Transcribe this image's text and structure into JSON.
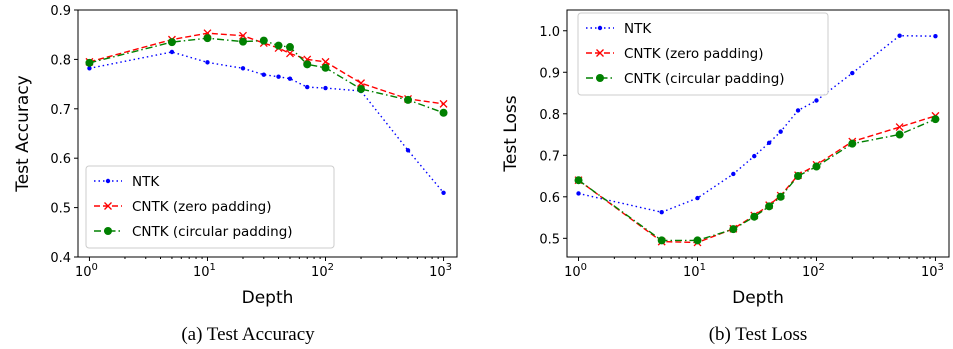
{
  "chart_data": [
    {
      "type": "line",
      "caption": "(a) Test Accuracy",
      "xlabel": "Depth",
      "ylabel": "Test Accuracy",
      "xscale": "log",
      "xlim": [
        0.8,
        1300
      ],
      "ylim": [
        0.4,
        0.9
      ],
      "yticks": [
        "0.4",
        "0.5",
        "0.6",
        "0.7",
        "0.8",
        "0.9"
      ],
      "xticks": [
        {
          "base": "10",
          "exp": "0"
        },
        {
          "base": "10",
          "exp": "1"
        },
        {
          "base": "10",
          "exp": "2"
        },
        {
          "base": "10",
          "exp": "3"
        }
      ],
      "legend_position": "lower-left",
      "series": [
        {
          "name": "NTK",
          "color": "#0000ff",
          "style": "dotted",
          "marker": "dot",
          "x": [
            1,
            5,
            10,
            20,
            30,
            40,
            50,
            70,
            100,
            200,
            500,
            1000
          ],
          "y": [
            0.782,
            0.815,
            0.794,
            0.782,
            0.769,
            0.765,
            0.761,
            0.744,
            0.742,
            0.736,
            0.616,
            0.53
          ]
        },
        {
          "name": "CNTK (zero padding)",
          "color": "#ff0000",
          "style": "dashed",
          "marker": "x",
          "x": [
            1,
            5,
            10,
            20,
            30,
            40,
            50,
            70,
            100,
            200,
            500,
            1000
          ],
          "y": [
            0.795,
            0.84,
            0.853,
            0.848,
            0.833,
            0.823,
            0.812,
            0.8,
            0.795,
            0.752,
            0.72,
            0.71
          ]
        },
        {
          "name": "CNTK (circular padding)",
          "color": "#008000",
          "style": "dashdot",
          "marker": "circle",
          "x": [
            1,
            5,
            10,
            20,
            30,
            40,
            50,
            70,
            100,
            200,
            500,
            1000
          ],
          "y": [
            0.793,
            0.835,
            0.843,
            0.836,
            0.838,
            0.828,
            0.825,
            0.79,
            0.783,
            0.74,
            0.718,
            0.692
          ]
        }
      ]
    },
    {
      "type": "line",
      "caption": "(b) Test Loss",
      "xlabel": "Depth",
      "ylabel": "Test Loss",
      "xscale": "log",
      "xlim": [
        0.8,
        1300
      ],
      "ylim": [
        0.455,
        1.05
      ],
      "yticks": [
        "0.5",
        "0.6",
        "0.7",
        "0.8",
        "0.9",
        "1.0"
      ],
      "xticks": [
        {
          "base": "10",
          "exp": "0"
        },
        {
          "base": "10",
          "exp": "1"
        },
        {
          "base": "10",
          "exp": "2"
        },
        {
          "base": "10",
          "exp": "3"
        }
      ],
      "legend_position": "upper-left",
      "series": [
        {
          "name": "NTK",
          "color": "#0000ff",
          "style": "dotted",
          "marker": "dot",
          "x": [
            1,
            5,
            10,
            20,
            30,
            40,
            50,
            70,
            100,
            200,
            500,
            1000
          ],
          "y": [
            0.608,
            0.563,
            0.597,
            0.655,
            0.698,
            0.73,
            0.757,
            0.808,
            0.832,
            0.898,
            0.988,
            0.987
          ]
        },
        {
          "name": "CNTK (zero padding)",
          "color": "#ff0000",
          "style": "dashed",
          "marker": "x",
          "x": [
            1,
            5,
            10,
            20,
            30,
            40,
            50,
            70,
            100,
            200,
            500,
            1000
          ],
          "y": [
            0.64,
            0.492,
            0.49,
            0.523,
            0.555,
            0.58,
            0.603,
            0.652,
            0.677,
            0.733,
            0.768,
            0.795
          ]
        },
        {
          "name": "CNTK (circular padding)",
          "color": "#008000",
          "style": "dashdot",
          "marker": "circle",
          "x": [
            1,
            5,
            10,
            20,
            30,
            40,
            50,
            70,
            100,
            200,
            500,
            1000
          ],
          "y": [
            0.64,
            0.495,
            0.495,
            0.522,
            0.552,
            0.577,
            0.6,
            0.65,
            0.673,
            0.728,
            0.75,
            0.787
          ]
        }
      ]
    }
  ]
}
